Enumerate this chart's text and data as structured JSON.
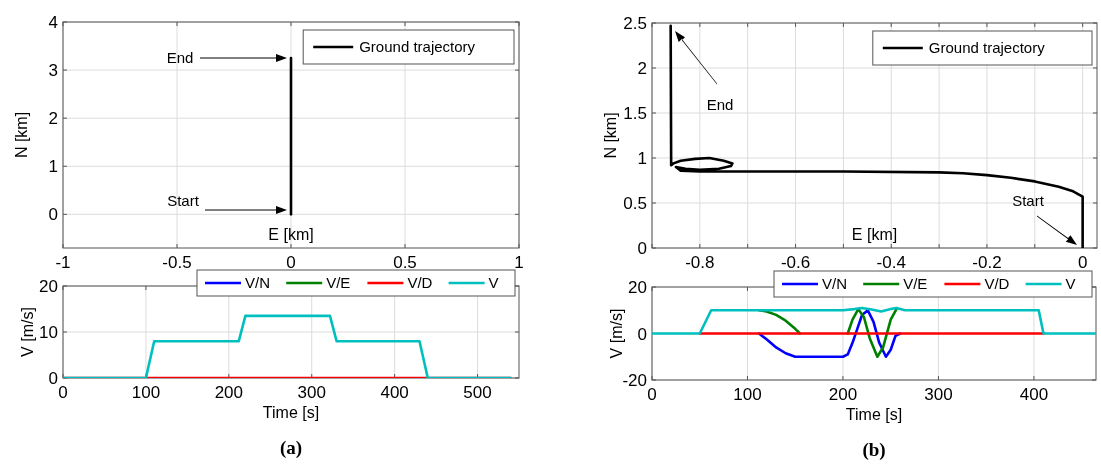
{
  "chart_data": [
    {
      "type": "line",
      "xlabel": "E [km]",
      "ylabel": "N [km]",
      "xlim": [
        -1,
        1
      ],
      "ylim": [
        -0.7,
        4
      ],
      "xticks": [
        -1,
        -0.5,
        0,
        0.5,
        1
      ],
      "yticks": [
        0,
        1,
        2,
        3,
        4
      ],
      "grid": true,
      "legend": "top right",
      "series": [
        {
          "name": "Ground trajectory",
          "color": "#000000",
          "x": [
            0,
            0
          ],
          "values": [
            0,
            3.25
          ]
        }
      ],
      "annotations": [
        "End",
        "Start"
      ]
    },
    {
      "type": "line",
      "xlabel": "Time [s]",
      "ylabel": "V [m/s]",
      "xlim": [
        0,
        550
      ],
      "ylim": [
        0,
        20
      ],
      "xticks": [
        0,
        100,
        200,
        300,
        400,
        500
      ],
      "yticks": [
        0,
        10,
        20
      ],
      "grid": true,
      "legend": "top",
      "series": [
        {
          "name": "V/N",
          "color": "#0000ff"
        },
        {
          "name": "V/E",
          "color": "#008000"
        },
        {
          "name": "V/D",
          "color": "#ff0000",
          "x": [
            0,
            540
          ],
          "values": [
            0,
            0
          ]
        },
        {
          "name": "V",
          "color": "#00bfbf",
          "x": [
            0,
            100,
            110,
            212,
            220,
            322,
            330,
            430,
            440,
            540
          ],
          "values": [
            0,
            0,
            8,
            8,
            13.5,
            13.5,
            8,
            8,
            0,
            0
          ]
        }
      ],
      "annotations": [
        "(a)"
      ]
    },
    {
      "type": "line",
      "xlabel": "E [km]",
      "ylabel": "N [km]",
      "xlim": [
        -0.9,
        0.03
      ],
      "ylim": [
        0,
        2.5
      ],
      "xticks": [
        {
          "value": -0.9,
          "label": null
        },
        -0.8,
        {
          "value": -0.7,
          "label": null
        },
        -0.6,
        {
          "value": -0.5,
          "label": null
        },
        -0.4,
        {
          "value": -0.3,
          "label": null
        },
        -0.2,
        {
          "value": -0.1,
          "label": null
        },
        0
      ],
      "yticks": [
        0,
        0.5,
        1,
        1.5,
        2,
        2.5
      ],
      "grid": true,
      "legend": "top right",
      "series": [
        {
          "name": "Ground  trajectory",
          "color": "#000000",
          "x": [
            0,
            0,
            -0.02,
            -0.05,
            -0.1,
            -0.15,
            -0.2,
            -0.25,
            -0.3,
            -0.5,
            -0.7,
            -0.8,
            -0.84,
            -0.85,
            -0.83,
            -0.8,
            -0.76,
            -0.735,
            -0.732,
            -0.75,
            -0.78,
            -0.81,
            -0.84,
            -0.855,
            -0.86,
            -0.86,
            -0.861
          ],
          "values": [
            0,
            0.57,
            0.63,
            0.68,
            0.74,
            0.78,
            0.81,
            0.83,
            0.84,
            0.85,
            0.85,
            0.85,
            0.86,
            0.9,
            0.88,
            0.87,
            0.88,
            0.91,
            0.94,
            0.97,
            1.0,
            0.99,
            0.97,
            0.94,
            0.92,
            1.0,
            2.47
          ]
        }
      ],
      "annotations": [
        "End",
        "Start"
      ]
    },
    {
      "type": "line",
      "xlabel": "Time [s]",
      "ylabel": "V [m/s]",
      "xlim": [
        0,
        465
      ],
      "ylim": [
        -20,
        20
      ],
      "xticks": [
        0,
        100,
        200,
        300,
        400
      ],
      "yticks": [
        -20,
        0,
        20
      ],
      "grid": true,
      "legend": "top",
      "series": [
        {
          "name": "V/N",
          "color": "#0000ff",
          "x": [
            112,
            120,
            130,
            140,
            150,
            160,
            200,
            205,
            210,
            215,
            220,
            226,
            232,
            238,
            245,
            250,
            255,
            260
          ],
          "values": [
            0,
            -2.5,
            -6,
            -8.5,
            -10,
            -10,
            -10,
            -9,
            -4,
            2,
            8,
            10,
            5,
            -4,
            -10,
            -7,
            -1,
            0
          ]
        },
        {
          "name": "V/E",
          "color": "#008000",
          "x": [
            112,
            120,
            130,
            140,
            150,
            155,
            180,
            205,
            210,
            216,
            222,
            228,
            236,
            242,
            250,
            256
          ],
          "values": [
            10,
            9.5,
            8,
            5.5,
            2,
            0,
            null,
            0,
            6,
            10.5,
            7,
            -2,
            -10,
            -6,
            6,
            10.5
          ]
        },
        {
          "name": "V/D",
          "color": "#ff0000",
          "x": [
            50,
            410
          ],
          "values": [
            0,
            0
          ]
        },
        {
          "name": "V",
          "color": "#00bfbf",
          "x": [
            0,
            50,
            62,
            200,
            212,
            220,
            230,
            240,
            250,
            256,
            265,
            405,
            410,
            465
          ],
          "values": [
            0,
            0,
            10,
            10,
            10.5,
            11,
            10.3,
            9.5,
            10.5,
            11,
            10,
            10,
            0,
            0
          ]
        }
      ],
      "annotations": [
        "(b)"
      ]
    }
  ]
}
